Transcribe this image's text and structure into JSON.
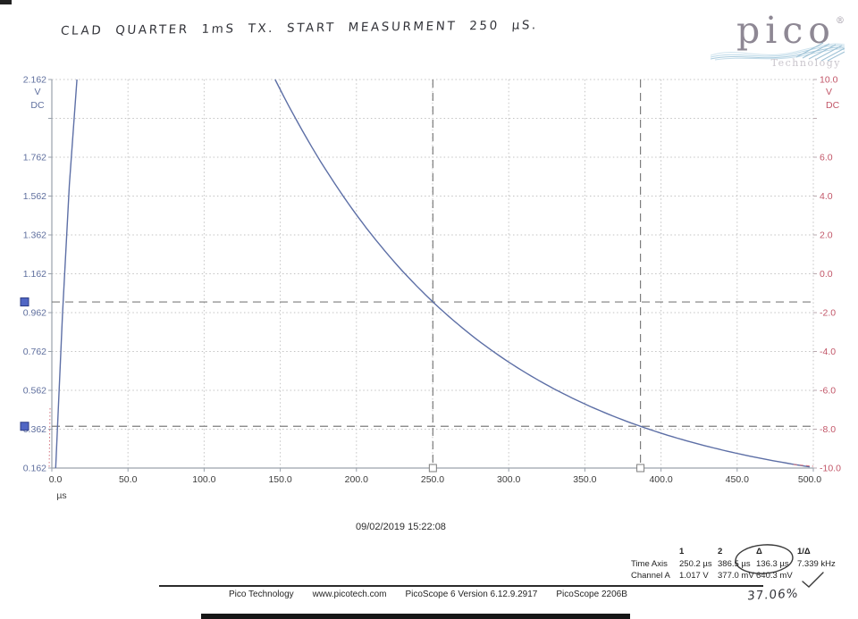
{
  "scan": {
    "handwritten_title": "CLAD  QUARTER  1mS TX.   START MEASURMENT  250 µS.",
    "percentage_note": "37.06%"
  },
  "logo": {
    "brand": "pico",
    "registered": "®",
    "subtitle": "Technology"
  },
  "chart_data": {
    "type": "line",
    "title": "",
    "grid": true,
    "x_axis": {
      "unit": "µs",
      "range": [
        0,
        500
      ],
      "tick_step": 50,
      "tick_labels": [
        "0.0",
        "50.0",
        "100.0",
        "150.0",
        "200.0",
        "250.0",
        "300.0",
        "350.0",
        "400.0",
        "450.0",
        "500.0"
      ],
      "label_color": "#3c3c3c"
    },
    "left_axis": {
      "channel": "Channel A",
      "unit_lines": [
        "V",
        "DC"
      ],
      "range_bottom_to_top": [
        0.162,
        2.162
      ],
      "tick_labels_top_to_bottom": [
        "2.162",
        "",
        "1.762",
        "1.562",
        "1.362",
        "1.162",
        "0.962",
        "0.762",
        "0.562",
        "0.362",
        "0.162"
      ],
      "color": "#5f6f9e"
    },
    "right_axis": {
      "unit_lines": [
        "V",
        "DC"
      ],
      "range_bottom_to_top": [
        -10.0,
        10.0
      ],
      "tick_labels_top_to_bottom": [
        "10.0",
        "",
        "6.0",
        "4.0",
        "2.0",
        "0.0",
        "-2.0",
        "-4.0",
        "-6.0",
        "-8.0",
        "-10.0"
      ],
      "color": "#c25668"
    },
    "series": [
      {
        "name": "Channel A",
        "color": "#5d6fa6",
        "rising_edge_t_v": [
          [
            2.5,
            0.162
          ],
          [
            7.0,
            0.95
          ],
          [
            11.5,
            1.62
          ],
          [
            16.5,
            2.162
          ]
        ],
        "exponential_decay": {
          "v_at_t_ref": 1.017,
          "t_ref_us": 250.2,
          "tau_us": 137.3,
          "enters_top_at_us": 146.6,
          "ends_at_us": 500
        }
      }
    ],
    "cursors": {
      "time_us": [
        250.2,
        386.5
      ],
      "channel_a_v": [
        1.017,
        0.377
      ],
      "line_color": "#7d7d7d",
      "time_handle_fill": "#ffffff",
      "level_handle_fill": "#5066c4"
    },
    "artifact_color": "#d4737f"
  },
  "timestamp": "09/02/2019 15:22:08",
  "measurements": {
    "col_headers": [
      "1",
      "2",
      "Δ",
      "1/Δ"
    ],
    "rows": [
      {
        "label": "Time Axis",
        "values": [
          "250.2 µs",
          "386.5 µs",
          "136.3 µs",
          "7.339 kHz"
        ]
      },
      {
        "label": "Channel A",
        "values": [
          "1.017 V",
          "377.0 mV",
          "640.3 mV",
          ""
        ]
      }
    ]
  },
  "footer": {
    "items": [
      "Pico Technology",
      "www.picotech.com",
      "PicoScope 6 Version 6.12.9.2917",
      "PicoScope 2206B"
    ]
  }
}
